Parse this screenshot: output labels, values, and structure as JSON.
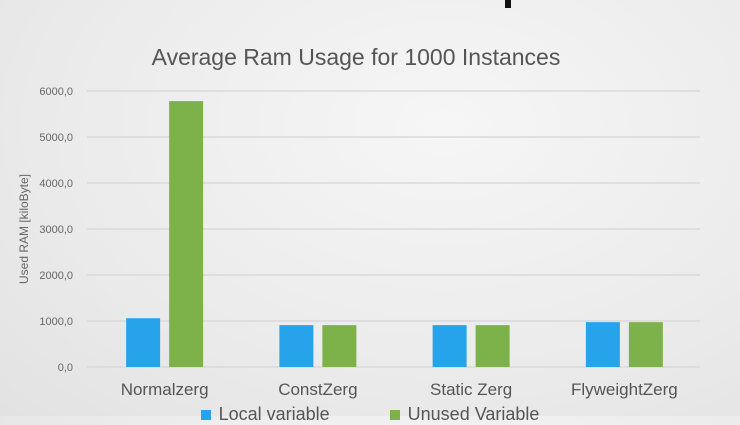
{
  "chart_data": {
    "type": "bar",
    "title": "Average Ram Usage for 1000 Instances",
    "ylabel": "Used RAM [kiloByte]",
    "xlabel": "",
    "ylim": [
      0,
      6000
    ],
    "yticks": [
      "0,0",
      "1000,0",
      "2000,0",
      "3000,0",
      "4000,0",
      "5000,0",
      "6000,0"
    ],
    "grid": true,
    "legend": "bottom",
    "categories": [
      "Normalzerg",
      "ConstZerg",
      "Static Zerg",
      "FlyweightZerg"
    ],
    "series": [
      {
        "name": "Local variable",
        "color": "#27a3ec",
        "values": [
          1060,
          910,
          910,
          975
        ]
      },
      {
        "name": "Unused Variable",
        "color": "#7db24a",
        "values": [
          5780,
          910,
          910,
          975
        ]
      }
    ]
  }
}
